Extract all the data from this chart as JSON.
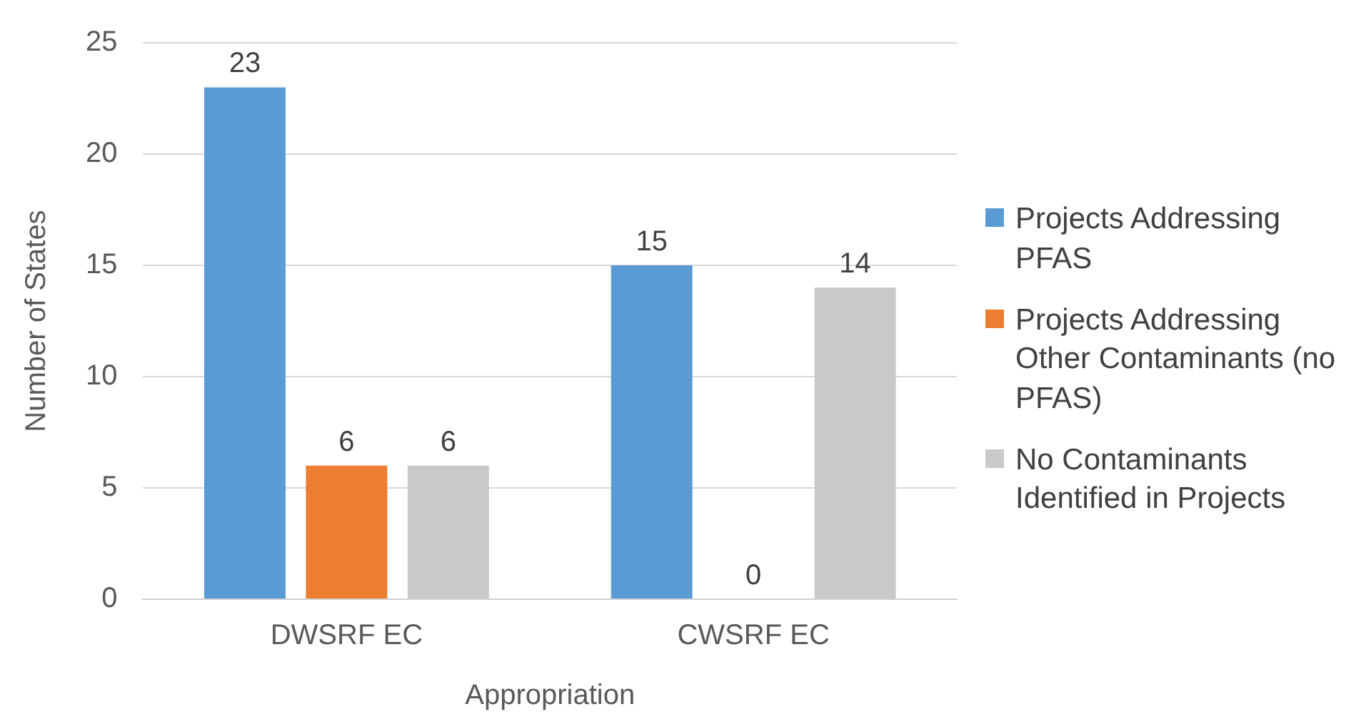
{
  "chart_data": {
    "type": "bar",
    "xlabel": "Appropriation",
    "ylabel": "Number of States",
    "categories": [
      "DWSRF EC",
      "CWSRF EC"
    ],
    "series": [
      {
        "name": "Projects Addressing PFAS",
        "color": "#5b9bd5",
        "values": [
          23,
          15
        ]
      },
      {
        "name": "Projects Addressing Other Contaminants (no PFAS)",
        "color": "#ed7d31",
        "values": [
          6,
          0
        ]
      },
      {
        "name": "No Contaminants Identified in Projects",
        "color": "#c9c9c9",
        "values": [
          6,
          14
        ]
      }
    ],
    "ylim": [
      0,
      25
    ],
    "yticks": [
      0,
      5,
      10,
      15,
      20,
      25
    ],
    "grid": "y",
    "legend": "right",
    "data_labels": true
  }
}
